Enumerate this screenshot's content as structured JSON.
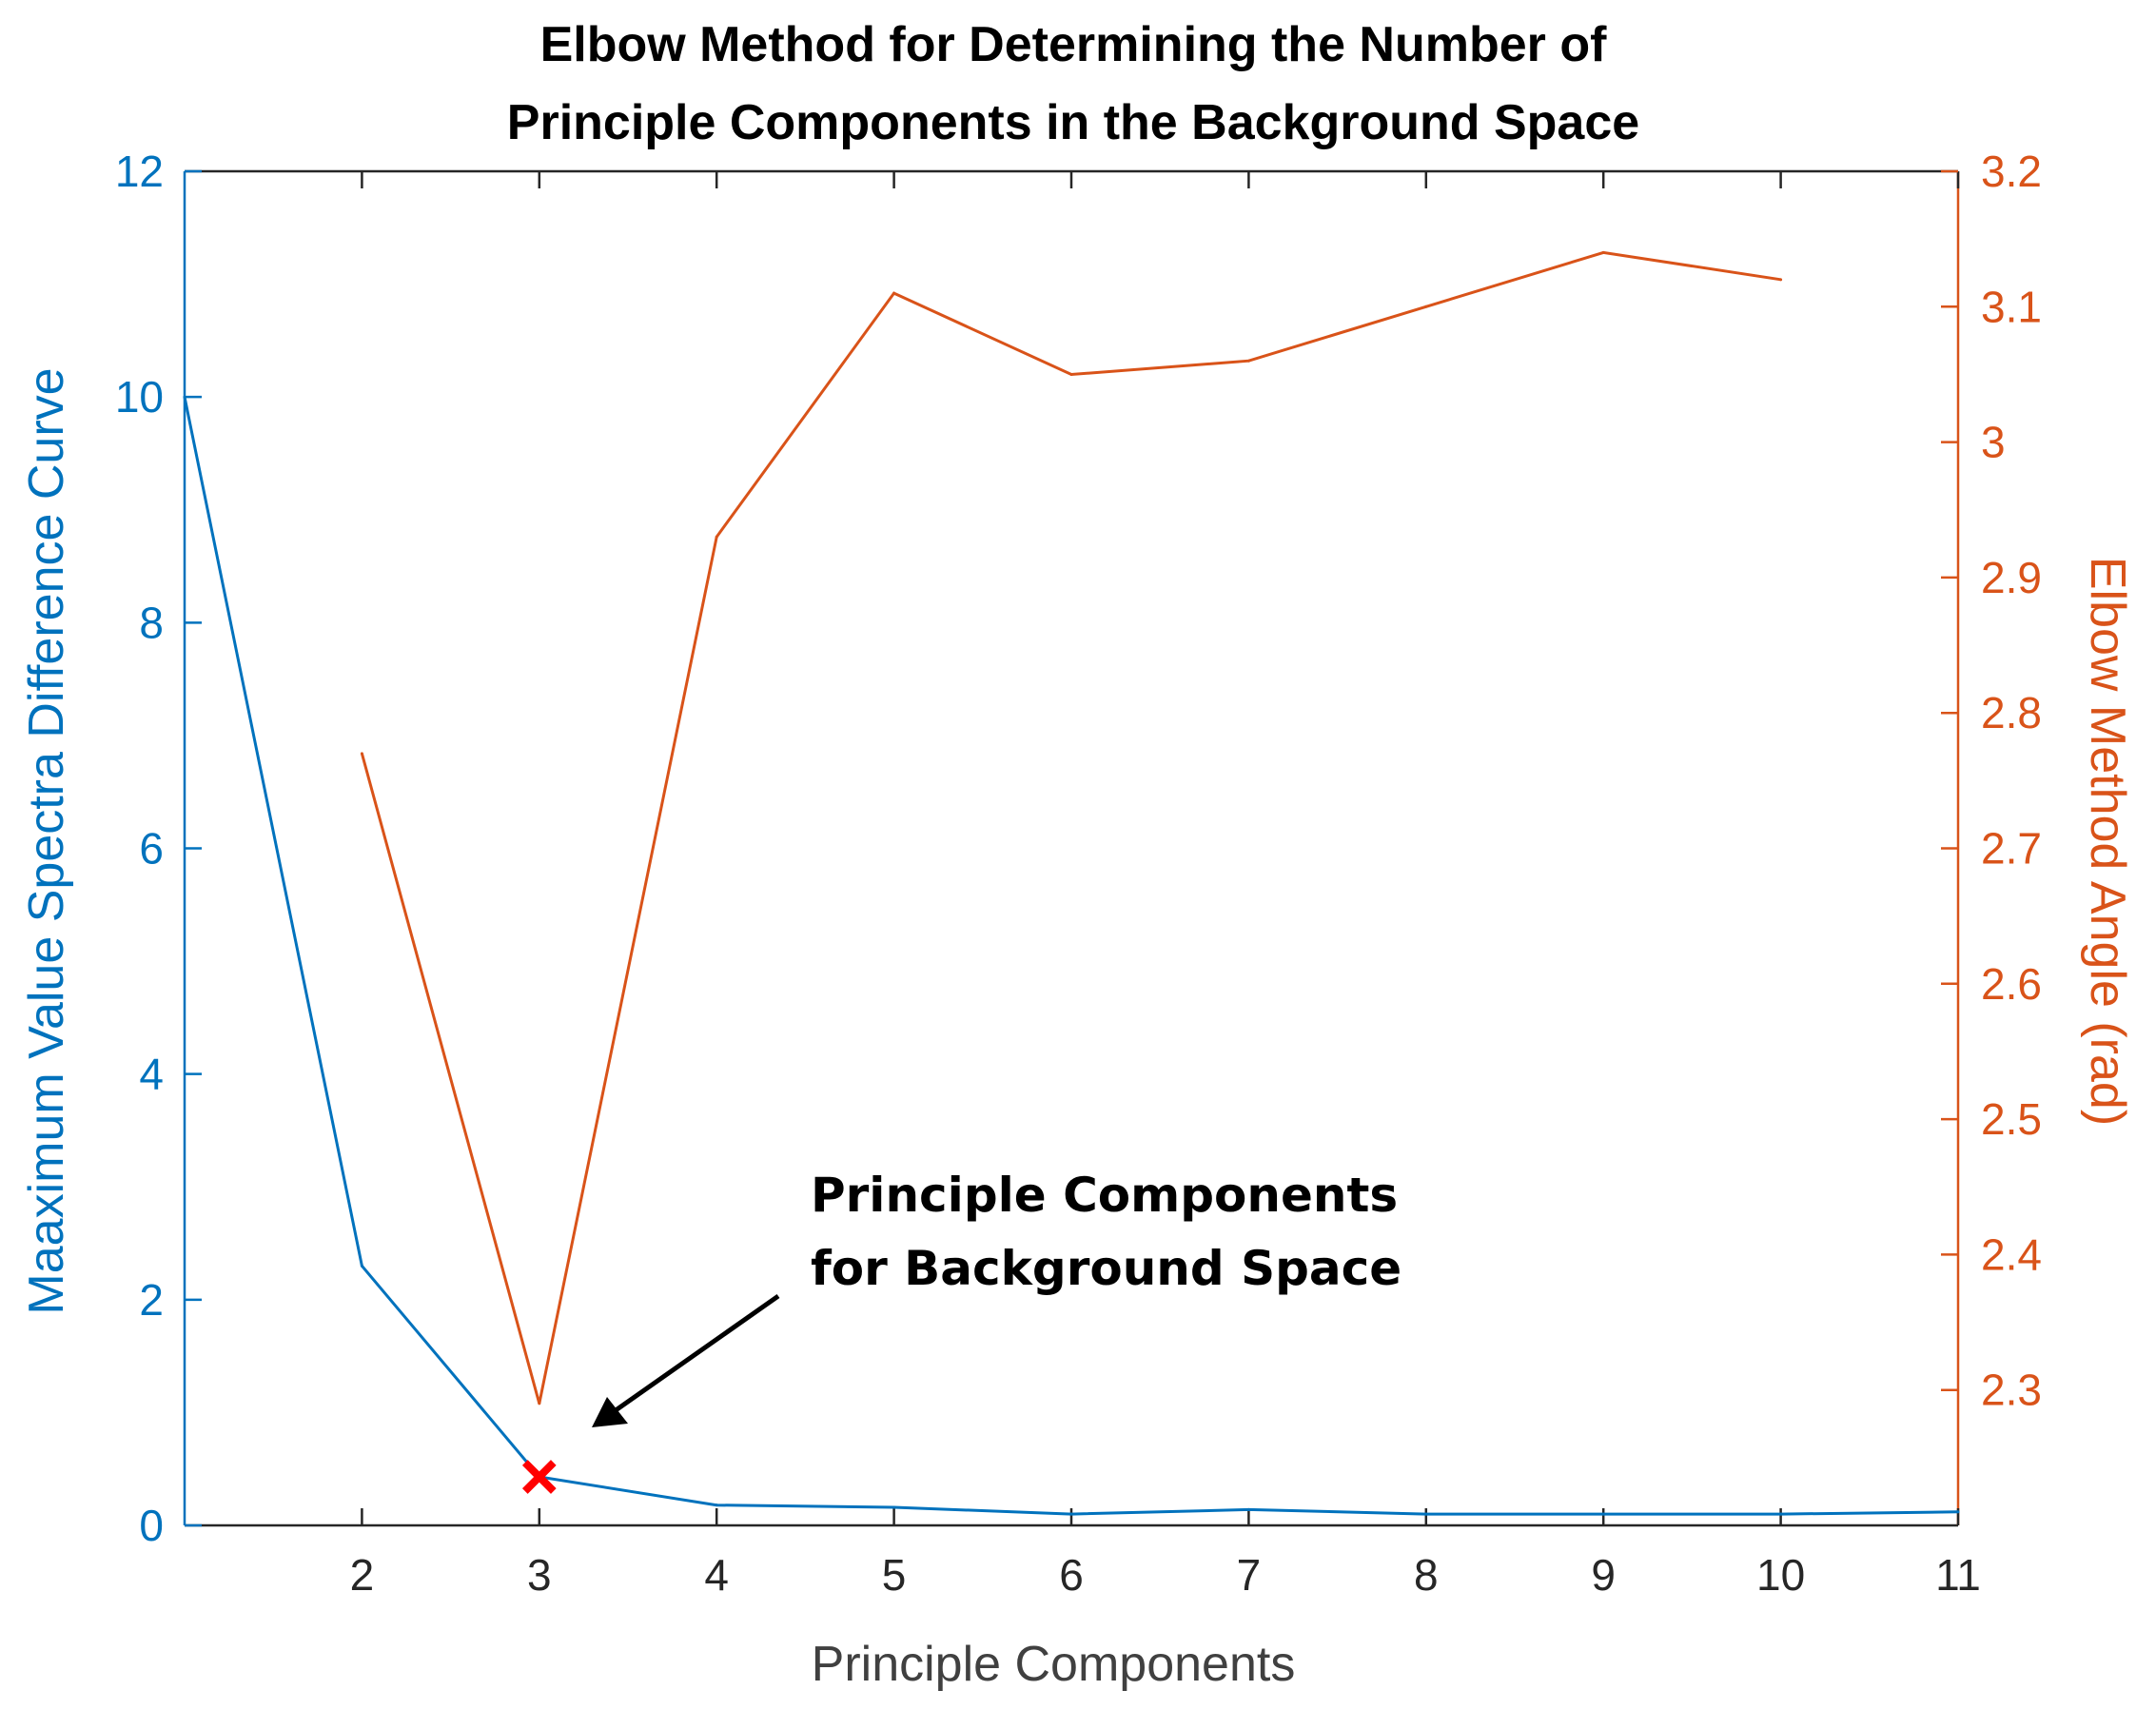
{
  "chart_data": {
    "type": "line",
    "title": [
      "Elbow Method for Determining the Number of",
      "Principle Components in the Background Space"
    ],
    "xlabel": "Principle Components",
    "xlim": [
      1,
      11
    ],
    "xticks": [
      2,
      3,
      4,
      5,
      6,
      7,
      8,
      9,
      10,
      11
    ],
    "y_left": {
      "label": "Maaximum Value Spectra Difference Curve",
      "lim": [
        0,
        12
      ],
      "ticks": [
        0,
        2,
        4,
        6,
        8,
        10,
        12
      ],
      "color": "#0072BD"
    },
    "y_right": {
      "label": "Elbow Method Angle (rad)",
      "lim": [
        2.2,
        3.2
      ],
      "ticks": [
        2.3,
        2.4,
        2.5,
        2.6,
        2.7,
        2.8,
        2.9,
        3,
        3.1,
        3.2
      ],
      "color": "#D95319"
    },
    "series": [
      {
        "axis": "left",
        "color": "#0072BD",
        "x": [
          1,
          2,
          3,
          4,
          5,
          6,
          7,
          8,
          9,
          10,
          11
        ],
        "y": [
          10,
          2.3,
          0.43,
          0.18,
          0.16,
          0.1,
          0.14,
          0.1,
          0.1,
          0.1,
          0.12
        ]
      },
      {
        "axis": "right",
        "color": "#D95319",
        "x": [
          2,
          3,
          4,
          5,
          6,
          7,
          8,
          9,
          10
        ],
        "y": [
          2.77,
          2.29,
          2.93,
          3.11,
          3.05,
          3.06,
          3.1,
          3.14,
          3.12
        ]
      }
    ],
    "marker": {
      "x": 3,
      "y": 0.43,
      "axis": "left",
      "symbol": "x",
      "color": "#FF0000"
    },
    "annotation": {
      "lines": [
        "Principle Components",
        "for Background Space"
      ]
    },
    "grid": false
  }
}
